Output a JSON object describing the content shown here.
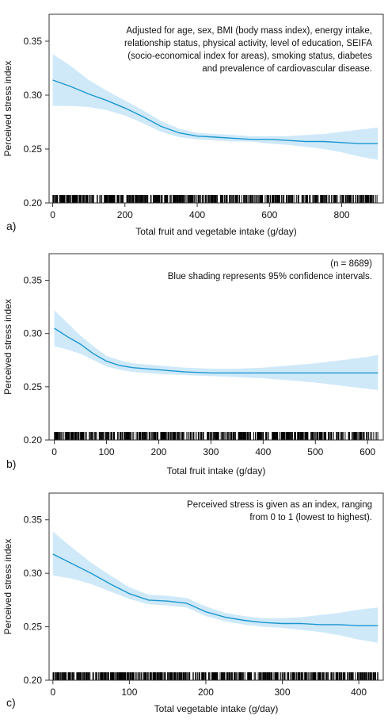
{
  "chart_data": [
    {
      "type": "line",
      "panel_label": "a)",
      "xlabel": "Total fruit and vegetable intake (g/day)",
      "ylabel": "Perceived stress index",
      "xlim": [
        -10,
        915
      ],
      "ylim": [
        0.2,
        0.375
      ],
      "x_ticks": [
        0,
        200,
        400,
        600,
        800
      ],
      "y_ticks": [
        0.2,
        0.25,
        0.3,
        0.35
      ],
      "annotation": [
        "Adjusted for age, sex, BMI (body mass index), energy intake,",
        "relationship status, physical activity, level of education, SEIFA",
        "(socio-economical index for areas), smoking status, diabetes",
        "and prevalence of cardiovascular disease."
      ],
      "series": [
        {
          "x": [
            0,
            50,
            100,
            150,
            200,
            250,
            300,
            350,
            400,
            450,
            500,
            550,
            600,
            650,
            700,
            750,
            800,
            850,
            900
          ],
          "y": [
            0.314,
            0.308,
            0.301,
            0.295,
            0.288,
            0.28,
            0.271,
            0.265,
            0.262,
            0.261,
            0.26,
            0.259,
            0.259,
            0.258,
            0.257,
            0.257,
            0.256,
            0.255,
            0.255
          ],
          "lower": [
            0.29,
            0.29,
            0.289,
            0.286,
            0.281,
            0.274,
            0.266,
            0.261,
            0.259,
            0.258,
            0.257,
            0.257,
            0.255,
            0.254,
            0.252,
            0.25,
            0.247,
            0.243,
            0.24
          ],
          "upper": [
            0.338,
            0.327,
            0.314,
            0.304,
            0.295,
            0.286,
            0.276,
            0.269,
            0.265,
            0.264,
            0.263,
            0.262,
            0.262,
            0.262,
            0.263,
            0.264,
            0.266,
            0.268,
            0.27
          ]
        }
      ]
    },
    {
      "type": "line",
      "panel_label": "b)",
      "xlabel": "Total fruit intake (g/day)",
      "ylabel": "Perceived stress index",
      "xlim": [
        -10,
        630
      ],
      "ylim": [
        0.2,
        0.375
      ],
      "x_ticks": [
        0,
        100,
        200,
        300,
        400,
        500,
        600
      ],
      "y_ticks": [
        0.2,
        0.25,
        0.3,
        0.35
      ],
      "annotation": [
        "(n = 8689)",
        "Blue shading represents 95% confidence intervals."
      ],
      "series": [
        {
          "x": [
            0,
            25,
            50,
            75,
            100,
            125,
            150,
            200,
            250,
            300,
            350,
            400,
            450,
            500,
            550,
            600,
            620
          ],
          "y": [
            0.305,
            0.297,
            0.29,
            0.281,
            0.274,
            0.27,
            0.268,
            0.266,
            0.264,
            0.263,
            0.263,
            0.263,
            0.263,
            0.263,
            0.263,
            0.263,
            0.263
          ],
          "lower": [
            0.288,
            0.285,
            0.281,
            0.275,
            0.269,
            0.266,
            0.264,
            0.262,
            0.261,
            0.26,
            0.259,
            0.258,
            0.256,
            0.254,
            0.251,
            0.248,
            0.247
          ],
          "upper": [
            0.322,
            0.31,
            0.298,
            0.288,
            0.279,
            0.275,
            0.272,
            0.27,
            0.268,
            0.267,
            0.267,
            0.268,
            0.27,
            0.272,
            0.275,
            0.278,
            0.28
          ]
        }
      ]
    },
    {
      "type": "line",
      "panel_label": "c)",
      "xlabel": "Total vegetable intake (g/day)",
      "ylabel": "Perceived stress index",
      "xlim": [
        -5,
        432
      ],
      "ylim": [
        0.2,
        0.375
      ],
      "x_ticks": [
        0,
        100,
        200,
        300,
        400
      ],
      "y_ticks": [
        0.2,
        0.25,
        0.3,
        0.35
      ],
      "annotation": [
        "Perceived stress is given as an index, ranging",
        "from 0 to 1 (lowest to highest)."
      ],
      "series": [
        {
          "x": [
            0,
            25,
            50,
            75,
            100,
            125,
            150,
            175,
            200,
            225,
            250,
            275,
            300,
            325,
            350,
            375,
            400,
            425
          ],
          "y": [
            0.318,
            0.309,
            0.3,
            0.29,
            0.281,
            0.275,
            0.274,
            0.272,
            0.264,
            0.259,
            0.256,
            0.254,
            0.253,
            0.253,
            0.252,
            0.252,
            0.251,
            0.251
          ],
          "lower": [
            0.298,
            0.295,
            0.29,
            0.283,
            0.276,
            0.271,
            0.27,
            0.268,
            0.26,
            0.255,
            0.252,
            0.25,
            0.249,
            0.247,
            0.245,
            0.242,
            0.238,
            0.235
          ],
          "upper": [
            0.339,
            0.324,
            0.31,
            0.298,
            0.287,
            0.28,
            0.279,
            0.277,
            0.269,
            0.263,
            0.26,
            0.258,
            0.258,
            0.259,
            0.261,
            0.263,
            0.266,
            0.268
          ]
        }
      ]
    }
  ]
}
